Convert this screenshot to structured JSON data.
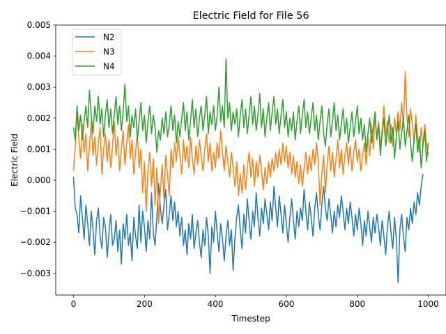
{
  "chart_data": {
    "type": "line",
    "title": "Electric Field for File 56",
    "xlabel": "Timestep",
    "ylabel": "Electric Field",
    "xlim": [
      -50,
      1050
    ],
    "ylim": [
      -0.0037,
      0.005
    ],
    "x_ticks": [
      0,
      200,
      400,
      600,
      800,
      1000
    ],
    "x_tick_labels": [
      "0",
      "200",
      "400",
      "600",
      "800",
      "1000"
    ],
    "y_ticks": [
      -0.003,
      -0.002,
      -0.001,
      0.0,
      0.001,
      0.002,
      0.003,
      0.004,
      0.005
    ],
    "y_tick_labels": [
      "−0.003",
      "−0.002",
      "−0.001",
      "0.000",
      "0.001",
      "0.002",
      "0.003",
      "0.004",
      "0.005"
    ],
    "grid": false,
    "legend_position": "top-left",
    "x": {
      "start": 0,
      "end": 1000,
      "step": 5
    },
    "series": [
      {
        "name": "N2",
        "color": "#1f77b4",
        "values": [
          0.0001,
          -0.0009,
          -0.0011,
          -0.0017,
          -0.0005,
          -0.0012,
          -0.0019,
          -0.0008,
          -0.0014,
          -0.0021,
          -0.001,
          -0.0016,
          -0.0024,
          -0.0013,
          -0.0009,
          -0.0018,
          -0.0022,
          -0.0012,
          -0.0015,
          -0.0025,
          -0.0017,
          -0.0011,
          -0.0021,
          -0.0019,
          -0.0013,
          -0.0023,
          -0.0016,
          -0.0027,
          -0.0014,
          -0.0019,
          -0.0011,
          -0.0021,
          -0.0017,
          -0.0026,
          -0.0012,
          -0.0018,
          -0.0022,
          -0.0008,
          -0.002,
          -0.001,
          -0.0015,
          -0.0023,
          -0.0013,
          -0.0019,
          -0.0004,
          -0.0017,
          -0.0021,
          -0.0012,
          -0.0001,
          -0.0009,
          -0.0014,
          -0.0008,
          -0.0003,
          -0.0016,
          -0.0011,
          -0.0005,
          -0.0013,
          -0.0007,
          -0.0015,
          -0.001,
          -0.0018,
          -0.0012,
          -0.0021,
          -0.0016,
          -0.0024,
          -0.0014,
          -0.0019,
          -0.0011,
          -0.0022,
          -0.0017,
          -0.0013,
          -0.002,
          -0.0025,
          -0.0016,
          -0.0021,
          -0.0012,
          -0.0018,
          -0.003,
          -0.0015,
          -0.002,
          -0.001,
          -0.0017,
          -0.0023,
          -0.0014,
          -0.0019,
          -0.0026,
          -0.0018,
          -0.0013,
          -0.0021,
          -0.0016,
          -0.0029,
          -0.0019,
          -0.0012,
          -0.0008,
          -0.0016,
          -0.0022,
          -0.0011,
          -0.0017,
          -0.0006,
          -0.0013,
          -0.0019,
          -0.001,
          -0.0015,
          -0.0004,
          -0.0012,
          -0.0018,
          -0.0009,
          -0.0014,
          -0.0006,
          -0.0011,
          -0.0016,
          -0.0007,
          -0.0013,
          -0.0002,
          -0.0009,
          -0.0015,
          -0.0005,
          -0.0011,
          -0.0017,
          -0.0008,
          -0.0014,
          -0.002,
          -0.0012,
          -0.0006,
          -0.0013,
          -0.0019,
          -0.001,
          -0.0015,
          -0.0009,
          -0.0013,
          -0.0003,
          -0.001,
          -0.0016,
          -0.0007,
          -0.0012,
          -0.0018,
          -0.0009,
          -0.0004,
          -0.0011,
          -0.0016,
          -0.0008,
          -0.0002,
          -0.0009,
          -0.0013,
          -0.0006,
          -0.0011,
          -0.0017,
          -0.001,
          -0.0015,
          -0.0008,
          -0.0012,
          -0.0005,
          -0.001,
          -0.0016,
          -0.0009,
          -0.0014,
          -0.0007,
          -0.0012,
          -0.0018,
          -0.0011,
          -0.0016,
          -0.0009,
          -0.0014,
          -0.0021,
          -0.0013,
          -0.0018,
          -0.001,
          -0.0015,
          -0.002,
          -0.0012,
          -0.0017,
          -0.0011,
          -0.0015,
          -0.0021,
          -0.0013,
          -0.0018,
          -0.0024,
          -0.0015,
          -0.001,
          -0.0017,
          -0.0022,
          -0.0012,
          -0.0019,
          -0.0033,
          -0.0016,
          -0.0011,
          -0.0018,
          -0.0023,
          -0.0012,
          -0.0016,
          -0.0009,
          -0.0014,
          -0.0007,
          -0.0011,
          -0.0004,
          -0.0008,
          -0.0002,
          0.0002
        ]
      },
      {
        "name": "N3",
        "color": "#ff7f0e",
        "values": [
          0.0003,
          0.0011,
          0.0022,
          0.0013,
          0.0007,
          0.0018,
          0.0009,
          0.0015,
          0.0003,
          0.0011,
          0.0019,
          0.0008,
          0.0014,
          0.0005,
          0.0012,
          0.0017,
          0.0002,
          0.001,
          0.0015,
          0.0006,
          0.0013,
          0.0004,
          0.0011,
          0.0019,
          0.0008,
          0.0014,
          0.0003,
          0.001,
          0.0016,
          0.0005,
          0.0012,
          0.0018,
          0.0007,
          0.0013,
          0.0002,
          0.0009,
          0.0015,
          0.0004,
          0.001,
          -0.0004,
          0.0006,
          -0.001,
          0.0003,
          0.0009,
          -0.0002,
          0.0007,
          -0.0008,
          0.0004,
          -0.0014,
          -0.0003,
          0.0005,
          -0.0006,
          0.0008,
          0.0002,
          -0.0005,
          0.001,
          0.0004,
          0.0012,
          0.0006,
          0.0014,
          0.0008,
          0.0002,
          0.0013,
          0.0006,
          0.0011,
          0.0004,
          0.0014,
          0.0007,
          0.0002,
          0.0011,
          0.0005,
          0.0013,
          0.0008,
          0.0003,
          0.001,
          0.0015,
          0.0006,
          0.0012,
          0.0003,
          0.0009,
          0.0004,
          0.0012,
          0.0007,
          0.0016,
          0.0009,
          0.0003,
          0.0011,
          0.0006,
          0.0001,
          0.0009,
          0.0004,
          -0.0002,
          0.0006,
          -0.0005,
          0.0002,
          -0.0004,
          0.0005,
          -0.0003,
          0.0004,
          0.0009,
          0.0001,
          0.0007,
          -0.0002,
          0.0006,
          0.0001,
          0.0008,
          0.0003,
          -0.0003,
          0.0004,
          -0.0001,
          0.0006,
          0.0001,
          0.0007,
          0.0003,
          0.0009,
          0.0004,
          0.001,
          0.0005,
          0.0012,
          0.0006,
          0.0011,
          0.0004,
          0.0009,
          0.0002,
          0.0008,
          0.0001,
          0.0006,
          -0.0001,
          0.0005,
          -0.0002,
          0.0004,
          0.0009,
          0.0002,
          0.0008,
          0.0003,
          0.001,
          0.0005,
          0.0012,
          0.0006,
          -0.0008,
          0.0002,
          0.0008,
          -0.0004,
          0.0005,
          0.0011,
          0.0003,
          0.0009,
          0.0001,
          0.0007,
          0.0013,
          0.0004,
          0.001,
          0.0002,
          0.0008,
          0.0012,
          0.0005,
          0.0011,
          0.0003,
          0.0009,
          0.0013,
          0.0006,
          0.001,
          0.0003,
          0.0008,
          0.0012,
          0.0005,
          0.0014,
          0.0008,
          0.0018,
          0.001,
          0.0021,
          0.0013,
          0.0019,
          0.0011,
          0.0016,
          0.0024,
          0.0014,
          0.0019,
          0.0012,
          0.0018,
          0.0011,
          0.002,
          0.0015,
          0.0022,
          0.0016,
          0.0025,
          0.0017,
          0.0035,
          0.002,
          0.0014,
          0.0023,
          0.0018,
          0.0012,
          0.0021,
          0.0014,
          0.0009,
          0.0017,
          0.0011,
          0.0018,
          0.0012,
          0.0008,
          0.0014,
          0.0009,
          0.0013
        ]
      },
      {
        "name": "N4",
        "color": "#2ca02c",
        "values": [
          0.0017,
          0.0013,
          0.0024,
          0.0016,
          0.0021,
          0.0013,
          0.0019,
          0.0024,
          0.0017,
          0.0029,
          0.0021,
          0.0015,
          0.0024,
          0.0019,
          0.0027,
          0.0018,
          0.0023,
          0.0014,
          0.0021,
          0.0026,
          0.0017,
          0.0023,
          0.0015,
          0.0021,
          0.0027,
          0.0018,
          0.0024,
          0.0016,
          0.0022,
          0.0031,
          0.0019,
          0.0024,
          0.0014,
          0.0021,
          0.0017,
          0.0023,
          0.0013,
          0.0019,
          0.0025,
          0.0016,
          0.0021,
          0.0012,
          0.0019,
          0.0024,
          0.0015,
          0.0021,
          0.0017,
          0.0009,
          0.0016,
          0.0013,
          0.002,
          0.0015,
          0.0022,
          0.0014,
          0.0018,
          0.0024,
          0.0016,
          0.0021,
          0.0012,
          0.0019,
          0.0014,
          0.002,
          0.0025,
          0.0016,
          0.0022,
          0.0013,
          0.0019,
          0.0026,
          0.0017,
          0.0023,
          0.0014,
          0.002,
          0.0024,
          0.0016,
          0.0021,
          0.0027,
          0.0015,
          0.0022,
          0.0018,
          0.0024,
          0.0016,
          0.0021,
          0.003,
          0.0019,
          0.0024,
          0.0017,
          0.0039,
          0.002,
          0.0025,
          0.0016,
          0.0022,
          0.0018,
          0.0023,
          0.0014,
          0.0021,
          0.0026,
          0.0017,
          0.0023,
          0.0015,
          0.0021,
          0.0027,
          0.0018,
          0.0024,
          0.0016,
          0.0021,
          0.0028,
          0.0017,
          0.0023,
          0.0014,
          0.002,
          0.0025,
          0.0016,
          0.0022,
          0.0027,
          0.0018,
          0.0023,
          0.0015,
          0.0021,
          0.0026,
          0.0017,
          0.0022,
          0.0014,
          0.002,
          0.0016,
          0.0022,
          0.0013,
          0.0019,
          0.0024,
          0.0015,
          0.0021,
          0.0026,
          0.0017,
          0.0022,
          0.0015,
          0.002,
          0.0025,
          0.0016,
          0.0021,
          0.0013,
          0.0019,
          0.0024,
          0.0015,
          0.0011,
          0.0018,
          0.0023,
          0.0014,
          0.0019,
          0.0025,
          0.0016,
          0.0021,
          0.0013,
          0.0018,
          0.0023,
          0.0015,
          0.002,
          0.0012,
          0.0017,
          0.0022,
          0.0014,
          0.0019,
          0.0024,
          0.0015,
          0.002,
          0.0013,
          0.0018,
          0.0009,
          0.0015,
          0.002,
          0.0012,
          0.0017,
          0.0022,
          0.0013,
          0.0018,
          0.0008,
          0.0015,
          0.002,
          0.0011,
          0.0016,
          0.0021,
          0.0012,
          0.0017,
          0.0007,
          0.0014,
          0.0019,
          0.001,
          0.0015,
          0.002,
          0.0011,
          0.0016,
          0.0021,
          0.0012,
          0.0006,
          0.0013,
          0.0018,
          0.0009,
          0.0014,
          0.0004,
          0.0011,
          0.0016,
          0.0006,
          0.0012,
          -0.0003,
          0.0008,
          0.0001
        ]
      }
    ]
  }
}
